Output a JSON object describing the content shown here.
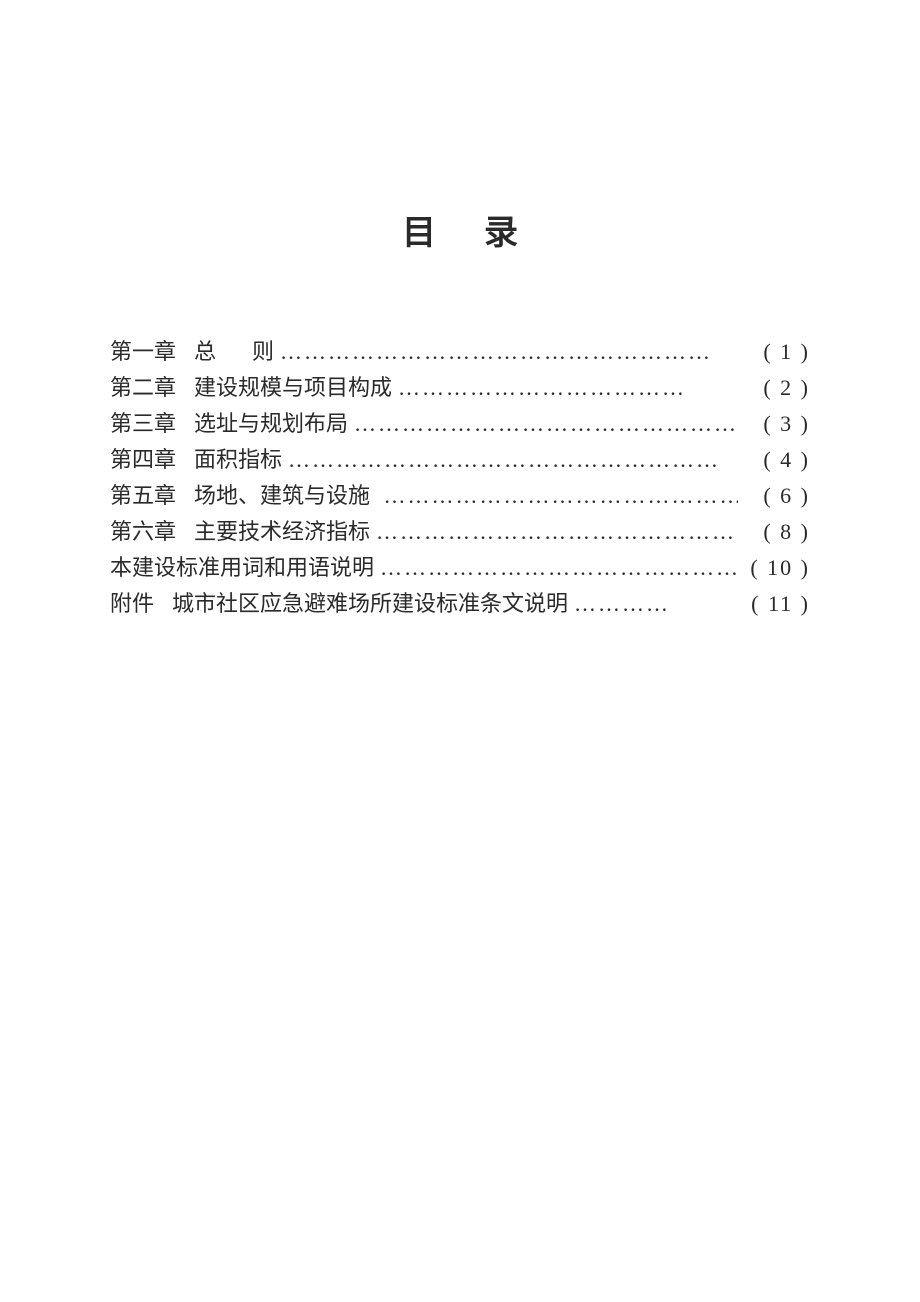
{
  "title": "目录",
  "colors": {
    "text": "#2a2a2a",
    "background": "#ffffff"
  },
  "typography": {
    "title_fontsize": 34,
    "body_fontsize": 22,
    "line_height": 36,
    "font_family": "SimSun"
  },
  "entries": [
    {
      "chapter": "第一章",
      "title_pre": "总",
      "title_post": "则",
      "page": "( 1 )"
    },
    {
      "chapter": "第二章",
      "title": "建设规模与项目构成",
      "page": "( 2 )"
    },
    {
      "chapter": "第三章",
      "title": "选址与规划布局",
      "page": "( 3 )"
    },
    {
      "chapter": "第四章",
      "title": "面积指标",
      "page": "( 4 )"
    },
    {
      "chapter": "第五章",
      "title": "场地、建筑与设施",
      "page": "( 6 )"
    },
    {
      "chapter": "第六章",
      "title": "主要技术经济指标",
      "page": "( 8 )"
    },
    {
      "full": "本建设标准用词和用语说明",
      "page": "( 10 )"
    },
    {
      "chapter": "附件",
      "title": "城市社区应急避难场所建设标准条文说明",
      "page": "( 11 )"
    }
  ],
  "leader_char": "…"
}
